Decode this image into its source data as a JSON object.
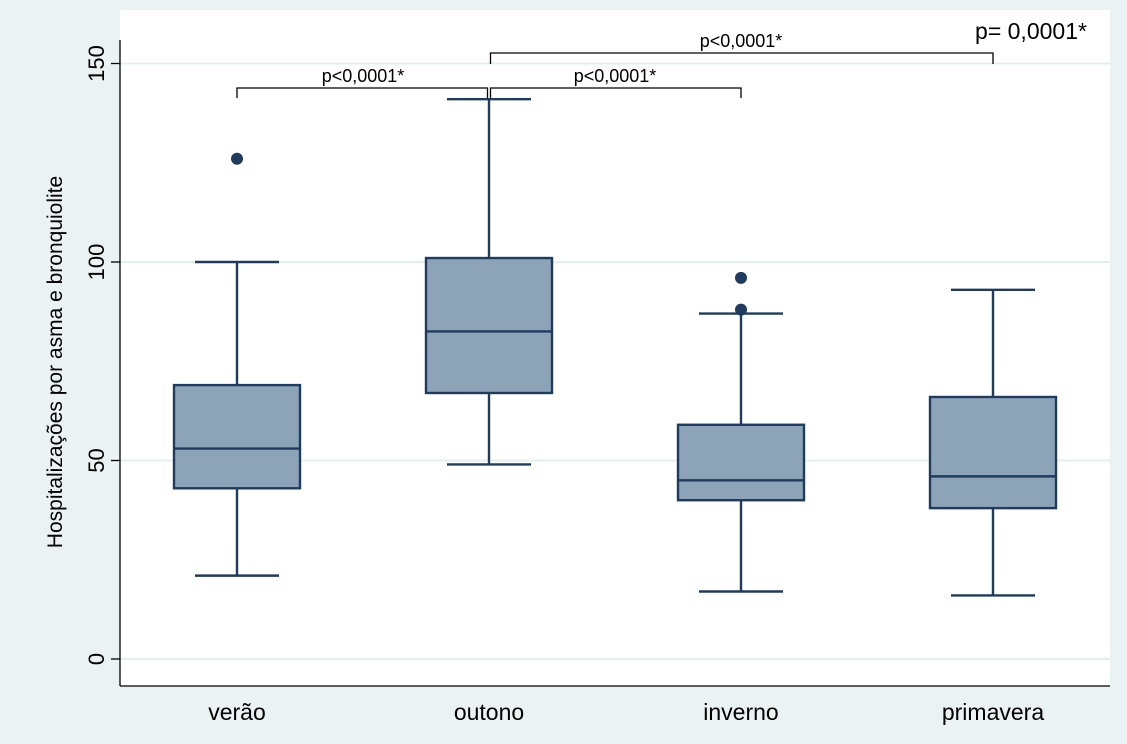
{
  "chart_data": {
    "type": "box",
    "ylabel": "Hospitalizações por asma e bronquiolite",
    "xlabel": "",
    "ylim": [
      0,
      155
    ],
    "yticks": [
      0,
      50,
      100,
      150
    ],
    "grid": true,
    "categories": [
      "verão",
      "outono",
      "inverno",
      "primavera"
    ],
    "boxes": [
      {
        "category": "verão",
        "whisker_low": 21,
        "q1": 43,
        "median": 53,
        "q3": 69,
        "whisker_high": 100,
        "outliers": [
          126
        ]
      },
      {
        "category": "outono",
        "whisker_low": 49,
        "q1": 67,
        "median": 82.5,
        "q3": 101,
        "whisker_high": 141,
        "outliers": []
      },
      {
        "category": "inverno",
        "whisker_low": 17,
        "q1": 40,
        "median": 45,
        "q3": 59,
        "whisker_high": 87,
        "outliers": [
          88,
          96
        ]
      },
      {
        "category": "primavera",
        "whisker_low": 16,
        "q1": 38,
        "median": 46,
        "q3": 66,
        "whisker_high": 93,
        "outliers": []
      }
    ],
    "comparisons": [
      {
        "from": "verão",
        "to": "outono",
        "label": "p<0,0001*",
        "level": 1
      },
      {
        "from": "outono",
        "to": "inverno",
        "label": "p<0,0001*",
        "level": 1
      },
      {
        "from": "outono",
        "to": "primavera",
        "label": "p<0,0001*",
        "level": 2
      }
    ],
    "global_p": "p= 0,0001*",
    "colors": {
      "background": "#eaf2f3",
      "plot_area": "#ffffff",
      "box_fill": "#8da3b8",
      "box_stroke": "#1f3b5e",
      "outlier": "#1f3b5e",
      "grid": "#e3eeef"
    }
  }
}
